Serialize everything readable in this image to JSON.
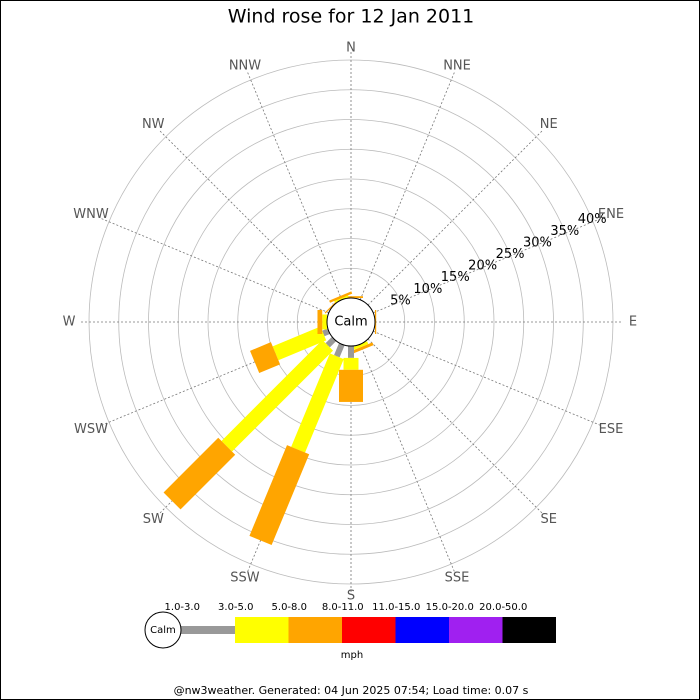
{
  "chart_data": {
    "type": "windrose",
    "title": "Wind rose for 12 Jan 2011",
    "categories": [
      "N",
      "NNE",
      "NE",
      "ENE",
      "E",
      "ESE",
      "SE",
      "SSE",
      "S",
      "SSW",
      "SW",
      "WSW",
      "W",
      "WNW",
      "NW",
      "NNW"
    ],
    "series": [
      {
        "name": "1.0-3.0",
        "color": "#999999",
        "values": [
          0,
          0,
          0,
          0,
          0,
          0,
          0,
          0,
          2,
          2.2,
          1.5,
          1,
          0,
          0,
          0,
          0
        ]
      },
      {
        "name": "3.0-5.0",
        "color": "#ffff00",
        "values": [
          0,
          0,
          0,
          0,
          0,
          0,
          0,
          0.5,
          2,
          17,
          24,
          8.7,
          0.8,
          0,
          0,
          0.3
        ]
      },
      {
        "name": "5.0-8.0",
        "color": "#ffa500",
        "values": [
          0.3,
          0,
          0,
          0,
          0.2,
          0,
          0,
          0.5,
          5.4,
          16.5,
          13,
          3.8,
          0.8,
          0,
          0.2,
          0.4
        ]
      },
      {
        "name": "8.0-11.0",
        "color": "#ff0000",
        "values": [
          0,
          0,
          0,
          0,
          0,
          0,
          0,
          0,
          0,
          0,
          0,
          0,
          0,
          0,
          0,
          0
        ]
      },
      {
        "name": "11.0-15.0",
        "color": "#0000ff",
        "values": [
          0,
          0,
          0,
          0,
          0,
          0,
          0,
          0,
          0,
          0,
          0,
          0,
          0,
          0,
          0,
          0
        ]
      },
      {
        "name": "15.0-20.0",
        "color": "#a020f0",
        "values": [
          0,
          0,
          0,
          0,
          0,
          0,
          0,
          0,
          0,
          0,
          0,
          0,
          0,
          0,
          0,
          0
        ]
      },
      {
        "name": "20.0-50.0",
        "color": "#000000",
        "values": [
          0,
          0,
          0,
          0,
          0,
          0,
          0,
          0,
          0,
          0,
          0,
          0,
          0,
          0,
          0,
          0
        ]
      }
    ],
    "rlim": [
      0,
      40
    ],
    "rticks": [
      {
        "value": 5,
        "label": "5%"
      },
      {
        "value": 10,
        "label": "10%"
      },
      {
        "value": 15,
        "label": "15%"
      },
      {
        "value": 20,
        "label": "20%"
      },
      {
        "value": 25,
        "label": "25%"
      },
      {
        "value": 30,
        "label": "30%"
      },
      {
        "value": 35,
        "label": "35%"
      },
      {
        "value": 40,
        "label": "40%"
      }
    ],
    "calm_label": "Calm",
    "unit_label": "mph",
    "footer": "@nw3weather. Generated: 04 Jun 2025 07:54; Load time: 0.07 s"
  }
}
